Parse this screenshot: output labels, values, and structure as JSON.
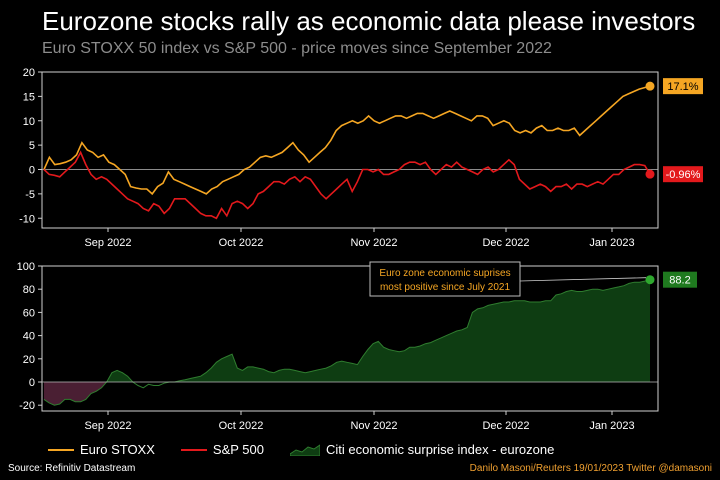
{
  "title": "Eurozone stocks rally as economic data please investors",
  "subtitle": "Euro STOXX 50 index vs S&P 500 - price moves since September 2022",
  "source": "Source: Refinitiv Datastream",
  "credit": "Danilo Masoni/Reuters 19/01/2023 Twitter @damasoni",
  "colors": {
    "stoxx": "#f5a623",
    "sp500": "#e3191c",
    "citi_fill": "#0e3d12",
    "citi_line": "#2f7d2f",
    "citi_neg": "#4a1f33"
  },
  "chart_data": [
    {
      "type": "line",
      "x_labels": [
        "Sep 2022",
        "Oct 2022",
        "Nov 2022",
        "Dec 2022",
        "Jan 2023"
      ],
      "ylim": [
        -12,
        20
      ],
      "yticks": [
        -10,
        -5,
        0,
        5,
        10,
        15,
        20
      ],
      "series": [
        {
          "name": "Euro STOXX",
          "end_label": "17.1%",
          "values": [
            0,
            2.5,
            1,
            1.2,
            1.5,
            2,
            3,
            5.5,
            4,
            3.5,
            2.5,
            3,
            1.5,
            1,
            0,
            -1,
            -3.5,
            -3.8,
            -4,
            -4,
            -5,
            -3.5,
            -2.8,
            -0.5,
            -2,
            -2.5,
            -3,
            -3.5,
            -4,
            -4.5,
            -5,
            -4,
            -3.5,
            -2.5,
            -2,
            -1.5,
            -1,
            0,
            0.5,
            1.5,
            2.5,
            2.8,
            2.5,
            3,
            3.5,
            4.5,
            5.5,
            4,
            3,
            1.5,
            2.5,
            3.5,
            4.5,
            6,
            8,
            9,
            9.5,
            10,
            9.5,
            10,
            11,
            10,
            9.5,
            10,
            10.5,
            11,
            11,
            10.5,
            11,
            11.5,
            11.5,
            11,
            10.5,
            11,
            11.5,
            12,
            11.5,
            11,
            10.5,
            10,
            11,
            11,
            10.5,
            9,
            9.5,
            10,
            9.5,
            8,
            7.5,
            8,
            7.5,
            8.5,
            9,
            8,
            8,
            8.5,
            8,
            8,
            8.5,
            7,
            8,
            9,
            10,
            11,
            12,
            13,
            14,
            15,
            15.5,
            16,
            16.5,
            16.8,
            17.1
          ]
        },
        {
          "name": "S&P 500",
          "end_label": "-0.96%",
          "values": [
            0,
            -1,
            -1.2,
            -1.5,
            -0.5,
            0.5,
            1.5,
            3.5,
            1,
            -1,
            -2,
            -1.5,
            -2,
            -3,
            -4,
            -5,
            -6,
            -6.5,
            -7,
            -8,
            -8.5,
            -7,
            -7.5,
            -9,
            -8,
            -6,
            -6,
            -6,
            -7,
            -8,
            -9,
            -9.5,
            -9.5,
            -10,
            -8,
            -9.5,
            -7,
            -6.5,
            -7,
            -8,
            -7,
            -5,
            -4.5,
            -3.5,
            -2.5,
            -2.5,
            -3,
            -2,
            -1.5,
            -2.5,
            -1.5,
            -2,
            -3.5,
            -5,
            -6,
            -5,
            -4,
            -3,
            -2,
            -4.5,
            -2.5,
            0,
            0,
            -0.5,
            0,
            -1,
            -1,
            -0.5,
            0,
            1,
            1.5,
            1.5,
            1,
            1.5,
            0,
            -1,
            0,
            1,
            0.5,
            1.5,
            0.5,
            0,
            -0.5,
            -1,
            0,
            0.5,
            -0.5,
            0,
            1,
            2,
            1,
            -2,
            -3,
            -4,
            -3.5,
            -3,
            -3.5,
            -4.5,
            -3.5,
            -3.5,
            -3,
            -4,
            -3,
            -3,
            -3.5,
            -3,
            -2.5,
            -3,
            -2,
            -1,
            -1,
            0,
            0.5,
            1,
            1,
            0.8,
            -0.96
          ]
        }
      ]
    },
    {
      "type": "area",
      "x_labels": [
        "Sep 2022",
        "Oct 2022",
        "Nov 2022",
        "Dec 2022",
        "Jan 2023"
      ],
      "ylim": [
        -25,
        100
      ],
      "yticks": [
        -20,
        0,
        20,
        40,
        60,
        80,
        100
      ],
      "series": [
        {
          "name": "Citi economic surprise index - eurozone",
          "end_label": "88.2",
          "values": [
            -15,
            -18,
            -20,
            -19,
            -15,
            -15,
            -17,
            -17,
            -15,
            -10,
            -8,
            -5,
            0,
            8,
            10,
            8,
            5,
            0,
            -3,
            -5,
            -2,
            -3,
            -3,
            -1,
            0,
            0,
            1,
            2,
            3,
            4,
            5,
            8,
            12,
            17,
            20,
            22,
            24,
            12,
            10,
            13,
            13,
            12,
            11,
            9,
            8,
            10,
            11,
            11,
            10,
            9,
            8,
            9,
            10,
            11,
            12,
            14,
            17,
            18,
            17,
            16,
            15,
            22,
            28,
            33,
            35,
            30,
            28,
            27,
            26,
            27,
            30,
            30,
            31,
            33,
            34,
            36,
            38,
            40,
            42,
            44,
            45,
            47,
            60,
            63,
            64,
            66,
            67,
            68,
            69,
            69,
            70,
            70,
            70,
            69,
            69,
            69,
            70,
            70,
            75,
            76,
            78,
            79,
            78,
            78,
            79,
            80,
            80,
            79,
            80,
            81,
            82,
            83,
            85,
            86,
            86,
            87,
            88.2
          ]
        }
      ]
    }
  ],
  "annotation": {
    "line1": "Euro zone economic suprises",
    "line2": "most positive since July 2021"
  },
  "legend": [
    "Euro STOXX",
    "S&P 500",
    "Citi economic surprise index - eurozone"
  ]
}
